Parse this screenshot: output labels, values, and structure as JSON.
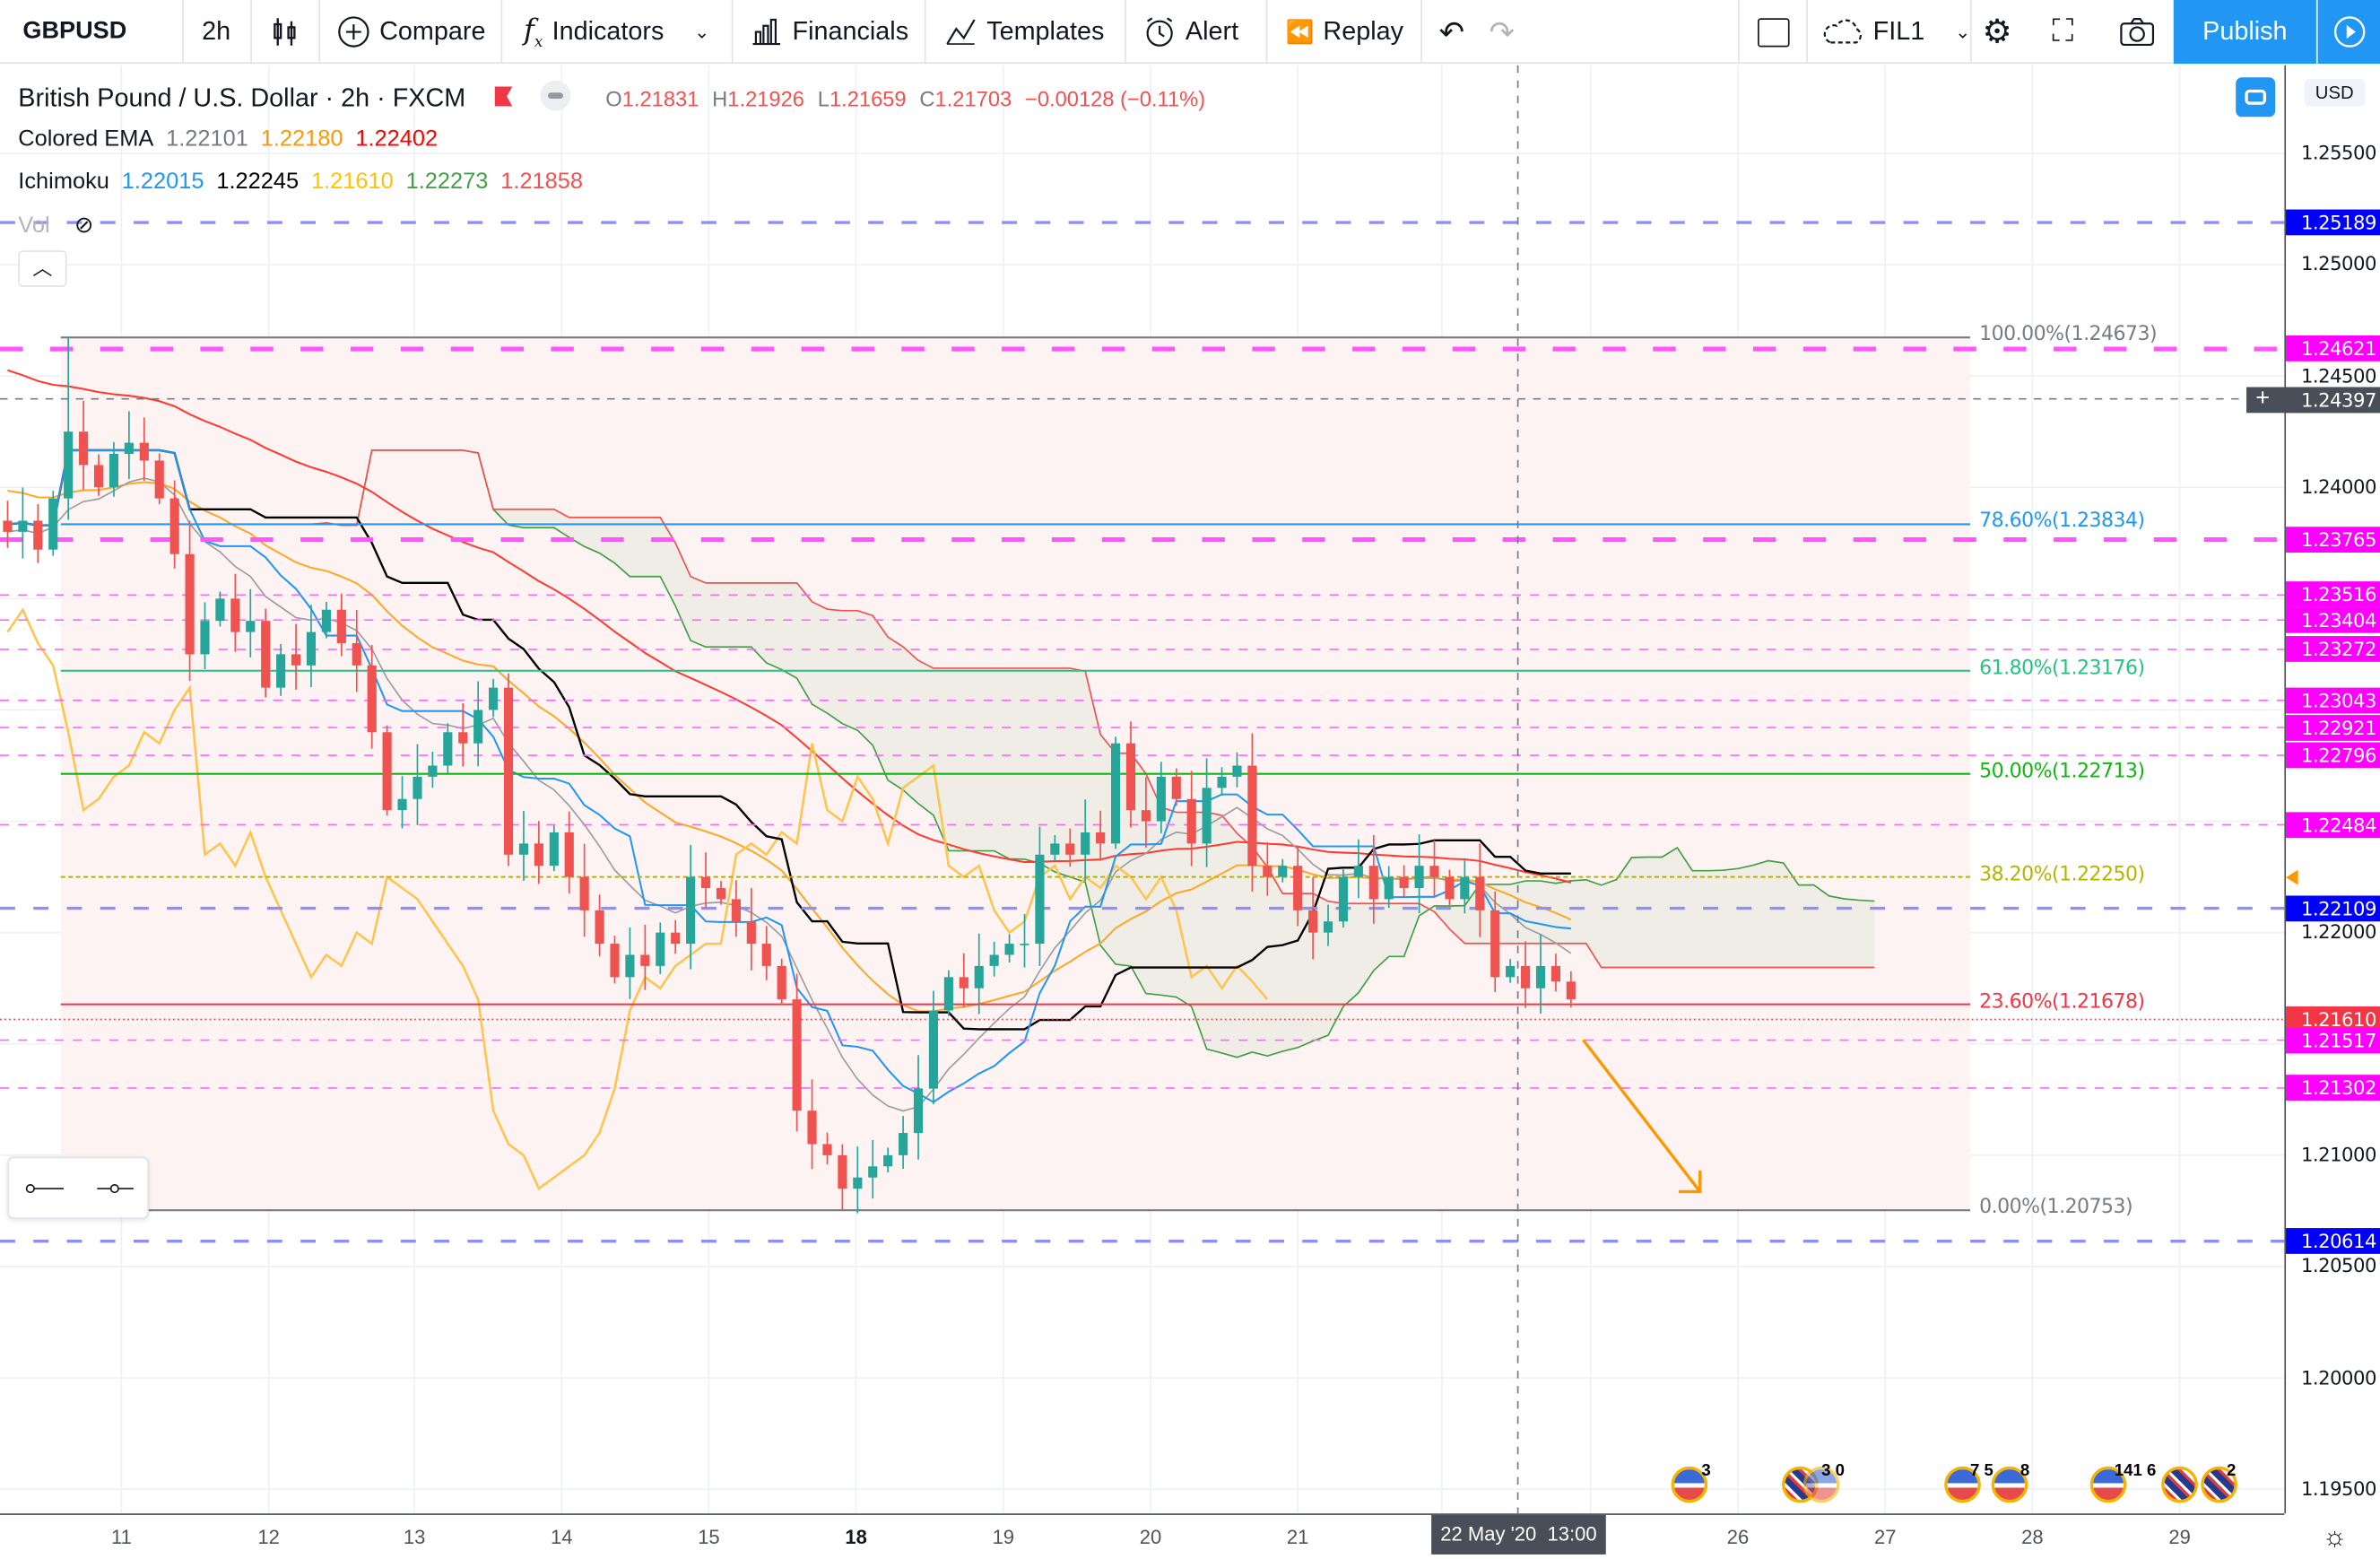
{
  "toolbar": {
    "symbol": "GBPUSD",
    "interval": "2h",
    "compare": "Compare",
    "indicators": "Indicators",
    "financials": "Financials",
    "templates": "Templates",
    "alert": "Alert",
    "replay": "Replay",
    "layout_name": "FIL1",
    "publish": "Publish"
  },
  "legend": {
    "title": "British Pound / U.S. Dollar · 2h · FXCM",
    "o_label": "O",
    "o": "1.21831",
    "h_label": "H",
    "h": "1.21926",
    "l_label": "L",
    "l": "1.21659",
    "c_label": "C",
    "c": "1.21703",
    "change": "−0.00128 (−0.11%)",
    "ema_name": "Colored EMA",
    "ema_values": [
      "1.22101",
      "1.22180",
      "1.22402"
    ],
    "ichimoku_name": "Ichimoku",
    "ichimoku_values": [
      "1.22015",
      "1.22245",
      "1.21610",
      "1.22273",
      "1.21858"
    ],
    "vol_name": "Vol"
  },
  "currency": "USD",
  "price_axis": [
    "1.25500",
    "1.25000",
    "1.24500",
    "1.24000",
    "1.22000",
    "1.21000",
    "1.20500",
    "1.20000",
    "1.19500"
  ],
  "time_axis": [
    "11",
    "12",
    "13",
    "14",
    "15",
    "18",
    "19",
    "20",
    "21",
    "26",
    "27",
    "28",
    "29"
  ],
  "crosshair": {
    "date": "22 May '20",
    "time": "13:00",
    "price": "1.24397"
  },
  "fib_levels": [
    {
      "label": "100.00%(1.24673)",
      "price": 1.24673,
      "color": "#787b86"
    },
    {
      "label": "78.60%(1.23834)",
      "price": 1.23834,
      "color": "#2196f3"
    },
    {
      "label": "61.80%(1.23176)",
      "price": 1.23176,
      "color": "#26c281"
    },
    {
      "label": "50.00%(1.22713)",
      "price": 1.22713,
      "color": "#11b711"
    },
    {
      "label": "38.20%(1.22250)",
      "price": 1.2225,
      "color": "#b5b500"
    },
    {
      "label": "23.60%(1.21678)",
      "price": 1.21678,
      "color": "#f23645"
    },
    {
      "label": "0.00%(1.20753)",
      "price": 1.20753,
      "color": "#787b86"
    }
  ],
  "hlines": [
    {
      "price": "1.25189",
      "style": "blue",
      "color": "#0000ff"
    },
    {
      "price": "1.24621",
      "style": "magenta-thick",
      "color": "#ff00ff"
    },
    {
      "price": "1.23765",
      "style": "magenta-thick",
      "color": "#ff00ff"
    },
    {
      "price": "1.23516",
      "style": "magenta",
      "color": "#ff00ff"
    },
    {
      "price": "1.23404",
      "style": "magenta",
      "color": "#ff00ff"
    },
    {
      "price": "1.23272",
      "style": "magenta",
      "color": "#ff00ff"
    },
    {
      "price": "1.23043",
      "style": "magenta",
      "color": "#ff00ff"
    },
    {
      "price": "1.22921",
      "style": "magenta",
      "color": "#ff00ff"
    },
    {
      "price": "1.22796",
      "style": "magenta",
      "color": "#ff00ff"
    },
    {
      "price": "1.22484",
      "style": "magenta",
      "color": "#ff00ff"
    },
    {
      "price": "1.22109",
      "style": "blue",
      "color": "#0000ff"
    },
    {
      "price": "1.21610",
      "style": "current",
      "color": "#f23645"
    },
    {
      "price": "1.21517",
      "style": "magenta",
      "color": "#ff00ff"
    },
    {
      "price": "1.21302",
      "style": "magenta",
      "color": "#ff00ff"
    },
    {
      "price": "1.20614",
      "style": "blue",
      "color": "#0000ff"
    }
  ],
  "events": [
    {
      "flag": "us",
      "count": "3"
    },
    {
      "flag": "uk",
      "count": "3 0"
    },
    {
      "flag": "us",
      "count": "7 5"
    },
    {
      "flag": "us",
      "count": "8"
    },
    {
      "flag": "us",
      "count": "141 6"
    },
    {
      "flag": "uk",
      "count": ""
    },
    {
      "flag": "uk",
      "count": "2"
    }
  ],
  "colors": {
    "up": "#26a69a",
    "down": "#ef5350",
    "accent": "#2196f3"
  },
  "chart_data": {
    "type": "candlestick",
    "symbol": "GBPUSD",
    "timeframe": "2h",
    "ylim": [
      1.193,
      1.258
    ],
    "closes": [
      1.238,
      1.2385,
      1.2372,
      1.2395,
      1.2425,
      1.241,
      1.24,
      1.2415,
      1.242,
      1.2412,
      1.2395,
      1.237,
      1.2325,
      1.234,
      1.235,
      1.2335,
      1.234,
      1.231,
      1.2325,
      1.232,
      1.2335,
      1.2345,
      1.233,
      1.232,
      1.229,
      1.2255,
      1.226,
      1.227,
      1.2275,
      1.229,
      1.2285,
      1.23,
      1.231,
      1.2235,
      1.224,
      1.223,
      1.2245,
      1.2225,
      1.221,
      1.2195,
      1.218,
      1.219,
      1.2185,
      1.22,
      1.2195,
      1.2225,
      1.222,
      1.2215,
      1.2205,
      1.2195,
      1.2185,
      1.217,
      1.212,
      1.2105,
      1.21,
      1.2085,
      1.209,
      1.2095,
      1.21,
      1.211,
      1.213,
      1.2165,
      1.218,
      1.2175,
      1.2185,
      1.219,
      1.2195,
      1.2195,
      1.2235,
      1.224,
      1.2235,
      1.2245,
      1.224,
      1.2285,
      1.2255,
      1.225,
      1.227,
      1.226,
      1.224,
      1.2265,
      1.227,
      1.2275,
      1.223,
      1.2225,
      1.223,
      1.221,
      1.22,
      1.2205,
      1.2225,
      1.223,
      1.2215,
      1.2225,
      1.222,
      1.223,
      1.2225,
      1.2215,
      1.2225,
      1.221,
      1.218,
      1.2185,
      1.2175,
      1.2185,
      1.2178,
      1.217
    ]
  }
}
